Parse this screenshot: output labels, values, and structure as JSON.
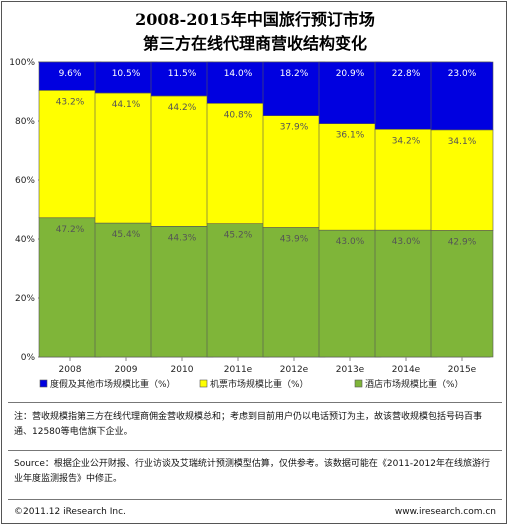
{
  "chart_data": {
    "type": "bar",
    "stacked": true,
    "percent": true,
    "title": [
      "2008-2015年中国旅行预订市场",
      "第三方在线代理商营收结构变化"
    ],
    "categories": [
      "2008",
      "2009",
      "2010",
      "2011e",
      "2012e",
      "2013e",
      "2014e",
      "2015e"
    ],
    "ylim": [
      0,
      100
    ],
    "yticks": [
      "0%",
      "20%",
      "40%",
      "60%",
      "80%",
      "100%"
    ],
    "grid": false,
    "legend_position": "bottom",
    "series": [
      {
        "name": "酒店市场规模比重（%）",
        "color": "#7fb539",
        "values": [
          47.2,
          45.4,
          44.3,
          45.2,
          43.9,
          43.0,
          43.0,
          42.9
        ],
        "labels": [
          "47.2%",
          "45.4%",
          "44.3%",
          "45.2%",
          "43.9%",
          "43.0%",
          "43.0%",
          "42.9%"
        ]
      },
      {
        "name": "机票市场规模比重（%）",
        "color": "#ffff00",
        "values": [
          43.2,
          44.1,
          44.2,
          40.8,
          37.9,
          36.1,
          34.2,
          34.1
        ],
        "labels": [
          "43.2%",
          "44.1%",
          "44.2%",
          "40.8%",
          "37.9%",
          "36.1%",
          "34.2%",
          "34.1%"
        ]
      },
      {
        "name": "度假及其他市场规模比重（%）",
        "color": "#0000e0",
        "values": [
          9.6,
          10.5,
          11.5,
          14.0,
          18.2,
          20.9,
          22.8,
          23.0
        ],
        "labels": [
          "9.6%",
          "10.5%",
          "11.5%",
          "14.0%",
          "18.2%",
          "20.9%",
          "22.8%",
          "23.0%"
        ]
      }
    ],
    "legend_order": [
      2,
      1,
      0
    ]
  },
  "notes": {
    "note": "注：营收规模指第三方在线代理商佣金营收规模总和；考虑到目前用户仍以电话预订为主，故该营收规模包括号码百事通、12580等电信旗下企业。",
    "source": "Source：根据企业公开财报、行业访谈及艾瑞统计预测模型估算，仅供参考。该数据可能在《2011-2012年在线旅游行业年度监测报告》中修正。"
  },
  "footer": {
    "copyright": "©2011.12 iResearch Inc.",
    "website": "www.iresearch.com.cn"
  }
}
